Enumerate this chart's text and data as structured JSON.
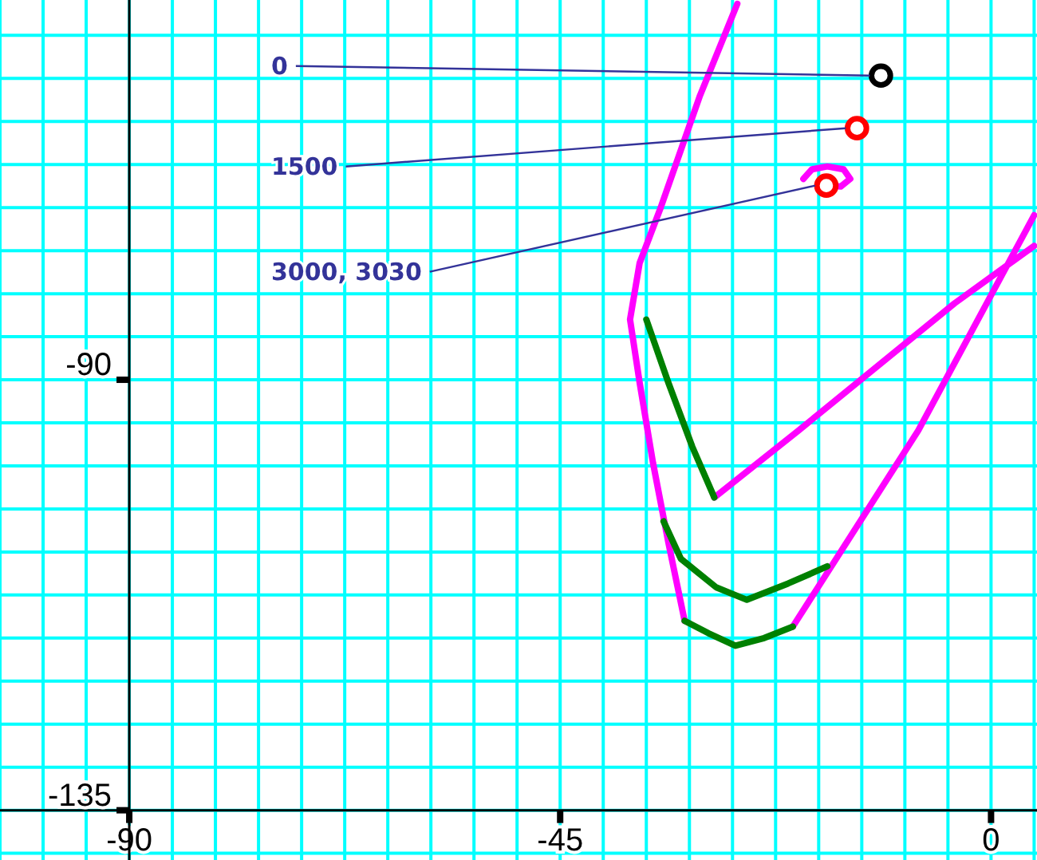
{
  "chart_data": {
    "type": "line",
    "grid": true,
    "marker": "none",
    "xlim": [
      -103.5,
      4.8
    ],
    "ylim": [
      -140.2,
      -50.3
    ],
    "xticks": [
      {
        "value": -103.5,
        "label": null
      },
      {
        "value": -99,
        "label": null
      },
      {
        "value": -94.5,
        "label": null
      },
      -90,
      {
        "value": -85.5,
        "label": null
      },
      {
        "value": -81,
        "label": null
      },
      {
        "value": -76.5,
        "label": null
      },
      {
        "value": -72,
        "label": null
      },
      {
        "value": -67.5,
        "label": null
      },
      {
        "value": -63,
        "label": null
      },
      {
        "value": -58.5,
        "label": null
      },
      {
        "value": -54,
        "label": null
      },
      {
        "value": -49.5,
        "label": null
      },
      -45,
      {
        "value": -40.5,
        "label": null
      },
      {
        "value": -36,
        "label": null
      },
      {
        "value": -31.5,
        "label": null
      },
      {
        "value": -27,
        "label": null
      },
      {
        "value": -22.5,
        "label": null
      },
      {
        "value": -18,
        "label": null
      },
      {
        "value": -13.5,
        "label": null
      },
      {
        "value": -9,
        "label": null
      },
      {
        "value": -4.5,
        "label": null
      },
      0,
      {
        "value": 4.5,
        "label": null
      }
    ],
    "yticks": [
      {
        "value": -139.5,
        "label": null
      },
      -135,
      {
        "value": -130.5,
        "label": null
      },
      {
        "value": -126,
        "label": null
      },
      {
        "value": -121.5,
        "label": null
      },
      {
        "value": -117,
        "label": null
      },
      {
        "value": -112.5,
        "label": null
      },
      {
        "value": -108,
        "label": null
      },
      {
        "value": -103.5,
        "label": null
      },
      {
        "value": -99,
        "label": null
      },
      {
        "value": -94.5,
        "label": null
      },
      -90,
      {
        "value": -85.5,
        "label": null
      },
      {
        "value": -81,
        "label": null
      },
      {
        "value": -76.5,
        "label": null
      },
      {
        "value": -72,
        "label": null
      },
      {
        "value": -67.5,
        "label": null
      },
      {
        "value": -63,
        "label": null
      },
      {
        "value": -58.5,
        "label": null
      },
      {
        "value": -54,
        "label": null
      }
    ],
    "series": [
      {
        "color": "#ff00ff",
        "x": [
          -26.5,
          -30.4,
          -34.5,
          -36.7,
          -37.7,
          -36.7,
          -35.3,
          -33.7,
          -32,
          null,
          -28.9,
          -20.1,
          -3.8,
          4.5,
          null,
          -20.7,
          -7.6,
          4.5,
          null,
          -19.6,
          -18.7,
          -17.1,
          -15.4,
          -14.7,
          -15.7,
          -17.4
        ],
        "values": [
          -50.7,
          -60.3,
          -72,
          -77.8,
          -83.7,
          -90.3,
          -98.7,
          -107,
          -115.2,
          null,
          -102.3,
          -95.3,
          -82,
          -76,
          null,
          -115.8,
          -95.3,
          -72.8,
          null,
          -69,
          -68,
          -67.7,
          -68,
          -69,
          -69.8,
          -69.7
        ]
      },
      {
        "color": "#008000",
        "x": [
          -36,
          -33.7,
          -31.2,
          -28.9,
          null,
          -34.2,
          -32.4,
          -28.7,
          -25.5,
          -21.2,
          -17.1,
          null,
          -32,
          -29.5,
          -26.7,
          -23.7,
          -20.7
        ],
        "values": [
          -83.7,
          -90.3,
          -97,
          -102.3,
          null,
          -104.8,
          -108.7,
          -111.7,
          -113,
          -111.3,
          -109.5,
          null,
          -115.2,
          -116.5,
          -117.8,
          -117,
          -115.8
        ]
      },
      {
        "type": "scatter",
        "marker": "circle",
        "x": [
          -11.5,
          -14,
          -17.2
        ],
        "values": [
          -58.2,
          -63.7,
          -69.7
        ],
        "colors": [
          "#000000",
          "#ff0000",
          "#ff0000"
        ]
      }
    ],
    "annotations": [
      {
        "text": "0",
        "x": -11.5,
        "y": -58.2
      },
      {
        "text": "1500",
        "x": -14,
        "y": -63.7
      },
      {
        "text": "3000, 3030",
        "x": -17.2,
        "y": -69.7
      }
    ]
  }
}
